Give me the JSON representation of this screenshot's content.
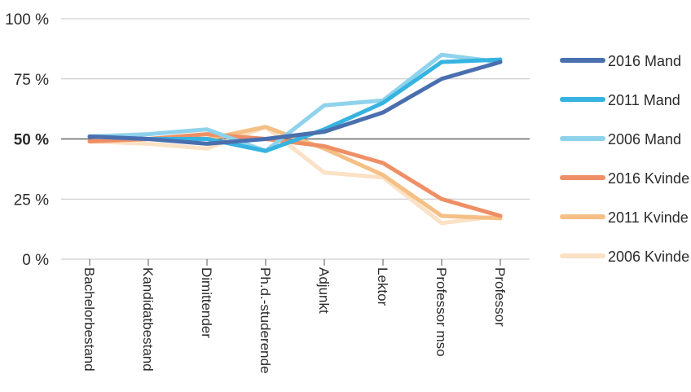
{
  "chart_data": {
    "type": "line",
    "categories": [
      "Bachelorbestand",
      "Kandidatbestand",
      "Dimittender",
      "Ph.d.-studerende",
      "Adjunkt",
      "Lektor",
      "Professor mso",
      "Professor"
    ],
    "y_ticks": [
      "0 %",
      "25 %",
      "50 %",
      "75 %",
      "100 %"
    ],
    "ylim": [
      0,
      100
    ],
    "emphasized_tick": "50 %",
    "legend_position": "right",
    "series": [
      {
        "name": "2016 Mand",
        "color": "#4a6faf",
        "values": [
          51,
          50,
          48,
          50,
          53,
          61,
          75,
          82
        ]
      },
      {
        "name": "2011 Mand",
        "color": "#36b3e0",
        "values": [
          51,
          50,
          50,
          45,
          54,
          65,
          82,
          83
        ]
      },
      {
        "name": "2006 Mand",
        "color": "#8fd2ec",
        "values": [
          51,
          52,
          54,
          45,
          64,
          66,
          85,
          82
        ]
      },
      {
        "name": "2016 Kvinde",
        "color": "#ef8f65",
        "values": [
          49,
          50,
          52,
          50,
          47,
          40,
          25,
          18
        ]
      },
      {
        "name": "2011 Kvinde",
        "color": "#f5bf85",
        "values": [
          49,
          50,
          50,
          55,
          46,
          35,
          18,
          17
        ]
      },
      {
        "name": "2006 Kvinde",
        "color": "#fbe1c5",
        "values": [
          49,
          48,
          46,
          55,
          36,
          34,
          15,
          18
        ]
      }
    ]
  }
}
